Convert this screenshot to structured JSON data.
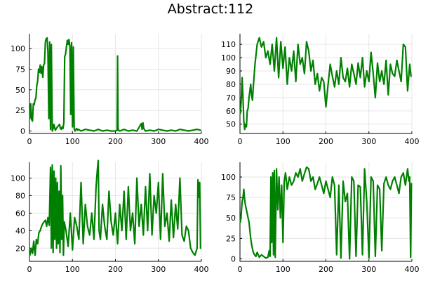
{
  "title": "Abstract:112",
  "colors": {
    "series": "#008000",
    "grid": "#e6e6e6",
    "axis": "#000000"
  },
  "chart_data": [
    {
      "type": "line",
      "xlim": [
        0,
        400
      ],
      "ylim": [
        -3,
        118
      ],
      "xticks": [
        0,
        100,
        200,
        300,
        400
      ],
      "yticks": [
        0,
        25,
        50,
        75,
        100
      ],
      "grid": true,
      "series": [
        {
          "x": [
            1,
            3,
            5,
            7,
            9,
            11,
            13,
            15,
            17,
            19,
            21,
            23,
            25,
            27,
            29,
            31,
            33,
            35,
            37,
            39,
            41,
            43,
            45,
            47,
            49,
            51,
            53,
            55,
            57,
            60,
            65,
            70,
            72,
            74,
            76,
            78,
            80,
            82,
            84,
            86,
            88,
            90,
            92,
            94,
            96,
            98,
            100,
            102,
            104,
            106,
            108,
            110,
            112,
            114,
            120,
            130,
            140,
            150,
            160,
            170,
            180,
            190,
            200,
            204,
            205,
            206,
            207,
            210,
            220,
            230,
            240,
            250,
            260,
            262,
            264,
            266,
            270,
            280,
            290,
            300,
            310,
            320,
            330,
            340,
            350,
            360,
            370,
            380,
            390,
            398
          ],
          "y": [
            15,
            33,
            14,
            12,
            33,
            32,
            38,
            40,
            55,
            60,
            75,
            71,
            80,
            70,
            78,
            65,
            80,
            82,
            108,
            112,
            113,
            96,
            15,
            108,
            2,
            105,
            0,
            3,
            8,
            1,
            5,
            8,
            3,
            2,
            5,
            3,
            10,
            90,
            93,
            102,
            110,
            105,
            111,
            103,
            20,
            107,
            5,
            102,
            3,
            0,
            2,
            3,
            1,
            2,
            0,
            2,
            1,
            0,
            2,
            0,
            1,
            0,
            0,
            1,
            91,
            5,
            1,
            0,
            2,
            0,
            1,
            0,
            9,
            2,
            10,
            3,
            0,
            1,
            0,
            2,
            1,
            0,
            1,
            0,
            2,
            1,
            0,
            1,
            2,
            1
          ]
        }
      ]
    },
    {
      "type": "line",
      "xlim": [
        0,
        400
      ],
      "ylim": [
        43,
        118
      ],
      "xticks": [
        0,
        100,
        200,
        300,
        400
      ],
      "yticks": [
        50,
        60,
        70,
        80,
        90,
        100,
        110
      ],
      "grid": true,
      "series": [
        {
          "x": [
            1,
            3,
            5,
            7,
            9,
            11,
            13,
            15,
            17,
            19,
            21,
            23,
            25,
            27,
            29,
            31,
            35,
            40,
            45,
            50,
            55,
            60,
            65,
            70,
            75,
            80,
            85,
            90,
            95,
            100,
            105,
            110,
            115,
            120,
            125,
            130,
            135,
            140,
            145,
            150,
            155,
            160,
            165,
            170,
            175,
            180,
            185,
            190,
            195,
            200,
            205,
            210,
            215,
            220,
            225,
            230,
            235,
            240,
            245,
            250,
            255,
            260,
            265,
            270,
            275,
            280,
            285,
            290,
            295,
            300,
            305,
            310,
            315,
            320,
            325,
            330,
            335,
            340,
            345,
            350,
            355,
            360,
            365,
            370,
            375,
            380,
            385,
            390,
            395,
            398
          ],
          "y": [
            58,
            68,
            85,
            70,
            52,
            46,
            50,
            48,
            60,
            62,
            70,
            75,
            80,
            72,
            68,
            78,
            95,
            110,
            115,
            108,
            112,
            100,
            105,
            95,
            110,
            90,
            115,
            85,
            112,
            92,
            108,
            80,
            100,
            90,
            105,
            82,
            110,
            95,
            100,
            88,
            112,
            105,
            90,
            98,
            80,
            88,
            75,
            85,
            82,
            63,
            80,
            95,
            86,
            78,
            90,
            80,
            100,
            85,
            82,
            92,
            78,
            95,
            88,
            80,
            96,
            85,
            100,
            78,
            90,
            82,
            104,
            88,
            70,
            96,
            82,
            90,
            80,
            98,
            72,
            95,
            88,
            86,
            98,
            90,
            82,
            110,
            108,
            75,
            95,
            86
          ]
        }
      ]
    },
    {
      "type": "line",
      "xlim": [
        0,
        400
      ],
      "ylim": [
        5,
        118
      ],
      "xticks": [
        0,
        100,
        200,
        300,
        400
      ],
      "yticks": [
        20,
        40,
        60,
        80,
        100
      ],
      "grid": true,
      "series": [
        {
          "x": [
            1,
            4,
            7,
            10,
            13,
            16,
            19,
            22,
            25,
            28,
            31,
            34,
            37,
            40,
            43,
            46,
            49,
            51,
            53,
            55,
            57,
            59,
            61,
            63,
            65,
            67,
            69,
            71,
            73,
            75,
            77,
            79,
            81,
            85,
            90,
            95,
            100,
            105,
            110,
            115,
            120,
            125,
            130,
            135,
            140,
            145,
            150,
            155,
            158,
            160,
            162,
            165,
            170,
            175,
            180,
            185,
            190,
            195,
            200,
            205,
            210,
            215,
            220,
            225,
            230,
            235,
            240,
            245,
            250,
            255,
            260,
            265,
            270,
            275,
            280,
            285,
            290,
            295,
            300,
            305,
            310,
            315,
            320,
            325,
            330,
            335,
            340,
            345,
            350,
            355,
            360,
            365,
            370,
            375,
            380,
            385,
            390,
            392,
            394,
            396,
            398
          ],
          "y": [
            12,
            20,
            14,
            28,
            12,
            30,
            25,
            38,
            40,
            45,
            48,
            50,
            52,
            45,
            55,
            46,
            112,
            20,
            115,
            15,
            108,
            30,
            100,
            20,
            95,
            25,
            85,
            15,
            114,
            30,
            80,
            12,
            50,
            40,
            22,
            60,
            18,
            55,
            45,
            30,
            95,
            25,
            70,
            45,
            35,
            60,
            30,
            90,
            110,
            120,
            40,
            30,
            70,
            45,
            30,
            85,
            50,
            35,
            60,
            25,
            70,
            40,
            85,
            30,
            90,
            40,
            60,
            25,
            100,
            45,
            70,
            35,
            90,
            40,
            105,
            35,
            80,
            60,
            95,
            30,
            105,
            45,
            60,
            28,
            75,
            32,
            70,
            42,
            100,
            35,
            28,
            45,
            40,
            20,
            15,
            12,
            20,
            98,
            78,
            95,
            20
          ]
        }
      ]
    },
    {
      "type": "line",
      "xlim": [
        0,
        400
      ],
      "ylim": [
        -3,
        118
      ],
      "xticks": [
        0,
        100,
        200,
        300,
        400
      ],
      "yticks": [
        0,
        25,
        50,
        75,
        100
      ],
      "grid": true,
      "series": [
        {
          "x": [
            1,
            3,
            5,
            7,
            9,
            11,
            13,
            15,
            17,
            19,
            21,
            23,
            25,
            28,
            31,
            34,
            37,
            40,
            45,
            50,
            55,
            60,
            65,
            68,
            70,
            72,
            74,
            76,
            78,
            80,
            82,
            85,
            88,
            91,
            94,
            97,
            100,
            103,
            106,
            110,
            115,
            120,
            125,
            130,
            135,
            140,
            145,
            150,
            155,
            160,
            165,
            170,
            175,
            180,
            185,
            190,
            195,
            200,
            205,
            210,
            215,
            220,
            225,
            230,
            235,
            240,
            245,
            250,
            255,
            260,
            265,
            270,
            275,
            280,
            285,
            290,
            295,
            300,
            305,
            310,
            315,
            320,
            325,
            330,
            335,
            340,
            345,
            350,
            355,
            360,
            365,
            370,
            375,
            380,
            385,
            390,
            393,
            395,
            397,
            399
          ],
          "y": [
            45,
            55,
            70,
            75,
            85,
            72,
            65,
            60,
            55,
            50,
            45,
            35,
            25,
            15,
            8,
            5,
            3,
            8,
            2,
            5,
            3,
            1,
            2,
            10,
            3,
            100,
            20,
            105,
            5,
            108,
            2,
            110,
            60,
            100,
            50,
            90,
            20,
            95,
            105,
            85,
            100,
            90,
            95,
            105,
            100,
            110,
            95,
            104,
            112,
            110,
            95,
            100,
            85,
            92,
            100,
            90,
            80,
            95,
            85,
            75,
            100,
            90,
            5,
            90,
            1,
            95,
            70,
            80,
            0,
            100,
            95,
            3,
            90,
            88,
            5,
            110,
            70,
            1,
            100,
            95,
            3,
            90,
            85,
            10,
            92,
            100,
            90,
            85,
            95,
            100,
            90,
            80,
            100,
            105,
            90,
            110,
            95,
            100,
            2,
            92
          ]
        }
      ]
    }
  ]
}
